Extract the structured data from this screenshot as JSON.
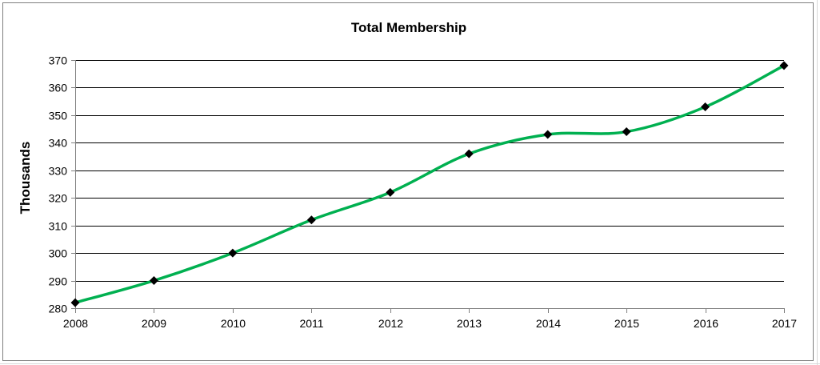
{
  "colors": {
    "line": "#00b050",
    "marker": "#000000",
    "gridline": "#000000",
    "axis": "#808080"
  },
  "chart_data": {
    "type": "line",
    "title": "Total Membership",
    "xlabel": "",
    "ylabel": "Thousands",
    "categories": [
      "2008",
      "2009",
      "2010",
      "2011",
      "2012",
      "2013",
      "2014",
      "2015",
      "2016",
      "2017"
    ],
    "series": [
      {
        "values": [
          282,
          290,
          300,
          312,
          322,
          336,
          343,
          344,
          353,
          368
        ]
      }
    ],
    "ylim": [
      280,
      370
    ],
    "yticks": [
      "280",
      "290",
      "300",
      "310",
      "320",
      "330",
      "340",
      "350",
      "360",
      "370"
    ],
    "grid": true,
    "smoothed": true,
    "marker": "diamond",
    "legend": "none"
  }
}
